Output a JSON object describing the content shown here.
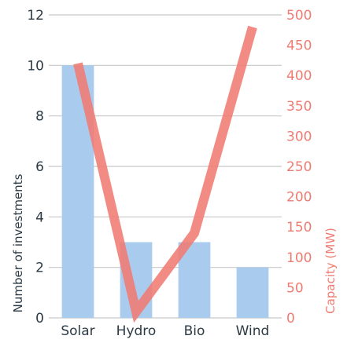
{
  "chart_data": {
    "type": "bar+line",
    "categories": [
      "Solar",
      "Hydro",
      "Bio",
      "Wind"
    ],
    "series": [
      {
        "type": "bar",
        "axis": "left",
        "values": [
          10,
          3,
          3,
          2
        ],
        "color": "#a9cbee"
      },
      {
        "type": "line",
        "axis": "right",
        "values": [
          420,
          10,
          140,
          480
        ],
        "color": "#f07b73"
      }
    ],
    "y_left": {
      "label": "Number of investments",
      "ticks": [
        0,
        2,
        4,
        6,
        8,
        10,
        12
      ],
      "range": [
        0,
        12
      ],
      "color": "#2b3a44"
    },
    "y_right": {
      "label": "Capacity (MW)",
      "ticks": [
        0,
        50,
        100,
        150,
        200,
        250,
        300,
        350,
        400,
        450,
        500
      ],
      "range": [
        0,
        500
      ],
      "color": "#f07b73"
    },
    "grid": true
  }
}
